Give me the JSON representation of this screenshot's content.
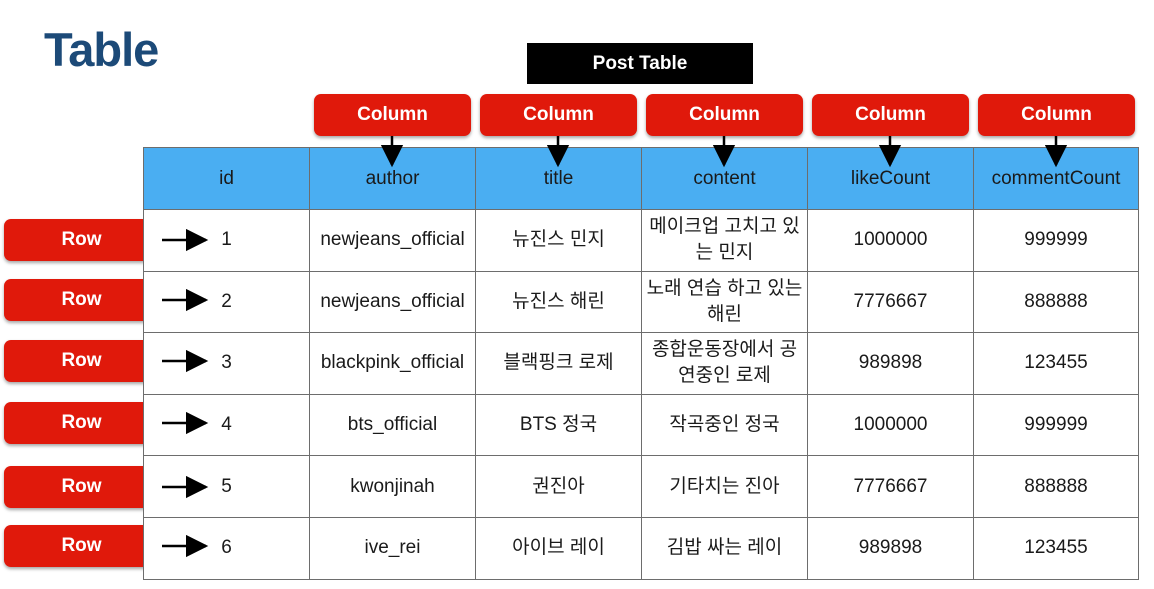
{
  "heading": "Table",
  "table_name": "Post Table",
  "column_tag": "Column",
  "row_tag": "Row",
  "colors": {
    "title": "#1c4a78",
    "tag": "#e0190b",
    "header_bg": "#4aaef2",
    "table_label_bg": "#000000"
  },
  "headers": [
    "id",
    "author",
    "title",
    "content",
    "likeCount",
    "commentCount"
  ],
  "rows": [
    [
      "1",
      "newjeans_official",
      "뉴진스 민지",
      "메이크업 고치고 있는 민지",
      "1000000",
      "999999"
    ],
    [
      "2",
      "newjeans_official",
      "뉴진스 해린",
      "노래 연습 하고 있는 해린",
      "7776667",
      "888888"
    ],
    [
      "3",
      "blackpink_official",
      "블랙핑크 로제",
      "종합운동장에서 공연중인 로제",
      "989898",
      "123455"
    ],
    [
      "4",
      "bts_official",
      "BTS 정국",
      "작곡중인 정국",
      "1000000",
      "999999"
    ],
    [
      "5",
      "kwonjinah",
      "권진아",
      "기타치는 진아",
      "7776667",
      "888888"
    ],
    [
      "6",
      "ive_rei",
      "아이브 레이",
      "김밥 싸는 레이",
      "989898",
      "123455"
    ]
  ]
}
